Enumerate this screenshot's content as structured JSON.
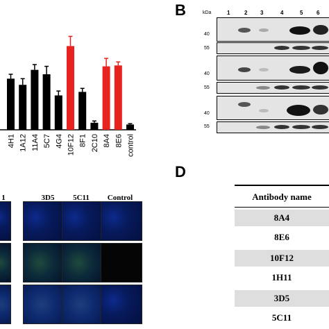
{
  "panels": {
    "b": "B",
    "d": "D"
  },
  "chart_data": {
    "type": "bar",
    "categories": [
      "4H1",
      "1A12",
      "11A4",
      "5C7",
      "4G4",
      "10F12",
      "8F1",
      "2C10",
      "8A4",
      "8E6",
      "control"
    ],
    "values": [
      0.58,
      0.51,
      0.68,
      0.63,
      0.39,
      0.95,
      0.43,
      0.08,
      0.72,
      0.73,
      0.06
    ],
    "errors": [
      0.05,
      0.07,
      0.06,
      0.09,
      0.05,
      0.11,
      0.04,
      0.02,
      0.09,
      0.04,
      0.01
    ],
    "highlighted": [
      "10F12",
      "8A4",
      "8E6"
    ],
    "colors": {
      "default": "#000000",
      "highlight": "#e8231f"
    }
  },
  "western_blot": {
    "kda_label": "kDa",
    "lanes": [
      "1",
      "2",
      "3",
      "4",
      "5",
      "6"
    ],
    "markers": [
      "40",
      "55",
      "40",
      "55",
      "40",
      "55"
    ]
  },
  "microscopy": {
    "columns": [
      "1",
      "3D5",
      "5C11",
      "Control"
    ]
  },
  "antibody_table": {
    "header": "Antibody name",
    "rows": [
      "8A4",
      "8E6",
      "10F12",
      "1H11",
      "3D5",
      "5C11"
    ]
  }
}
